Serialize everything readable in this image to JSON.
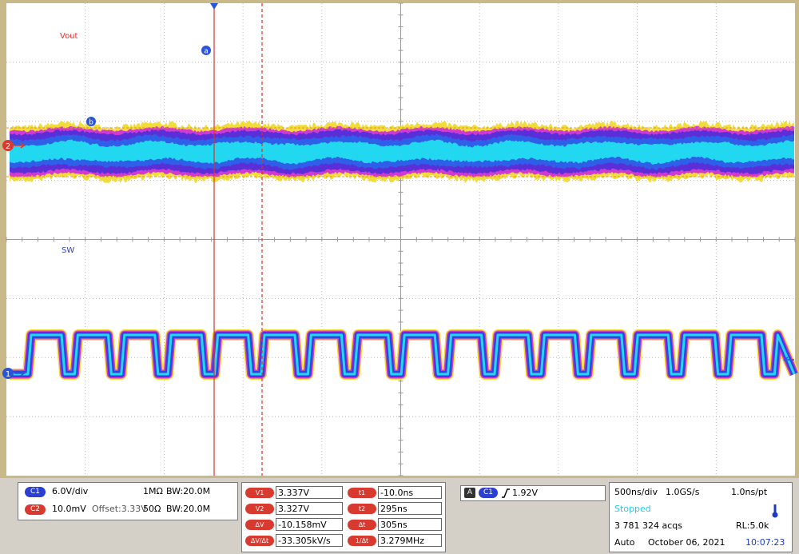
{
  "screen": {
    "labels": {
      "vout": "Vout",
      "sw": "SW",
      "cursor_a": "a",
      "cursor_b": "b",
      "ch2": "2",
      "ch1": "1"
    }
  },
  "channels": [
    {
      "badge": "C1",
      "scale": "6.0V/div",
      "impedance": "1MΩ",
      "bandwidth": "BW:20.0M"
    },
    {
      "badge": "C2",
      "scale": "10.0mV",
      "offset": "Offset:3.33V",
      "impedance": "50Ω",
      "bandwidth": "BW:20.0M"
    }
  ],
  "measurements": [
    [
      "V1",
      "3.337V",
      "t1",
      "-10.0ns"
    ],
    [
      "V2",
      "3.327V",
      "t2",
      "295ns"
    ],
    [
      "ΔV",
      "-10.158mV",
      "Δt",
      "305ns"
    ],
    [
      "ΔV/Δt",
      "-33.305kV/s",
      "1/Δt",
      "3.279MHz"
    ]
  ],
  "trigger": {
    "mode": "A",
    "source": "C1",
    "level": "1.92V"
  },
  "acquisition": {
    "timebase": "500ns/div",
    "sample_rate": "1.0GS/s",
    "resolution": "1.0ns/pt",
    "state": "Stopped",
    "acqs": "3 781 324 acqs",
    "record_length": "RL:5.0k",
    "mode": "Auto",
    "date": "October 06, 2021",
    "time": "10:07:23"
  }
}
